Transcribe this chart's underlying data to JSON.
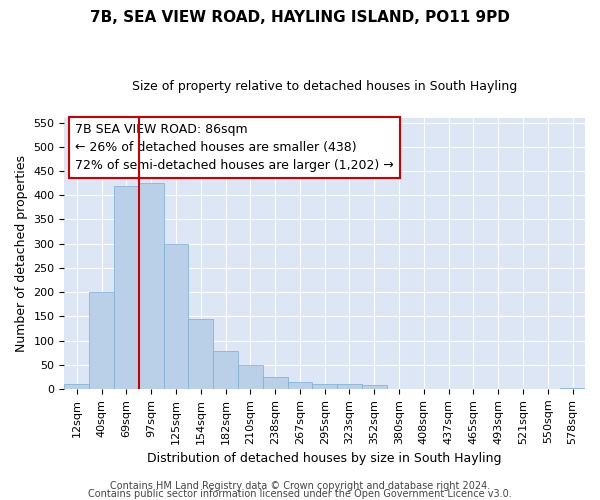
{
  "title": "7B, SEA VIEW ROAD, HAYLING ISLAND, PO11 9PD",
  "subtitle": "Size of property relative to detached houses in South Hayling",
  "xlabel": "Distribution of detached houses by size in South Hayling",
  "ylabel": "Number of detached properties",
  "footnote1": "Contains HM Land Registry data © Crown copyright and database right 2024.",
  "footnote2": "Contains public sector information licensed under the Open Government Licence v3.0.",
  "annotation_title": "7B SEA VIEW ROAD: 86sqm",
  "annotation_line1": "← 26% of detached houses are smaller (438)",
  "annotation_line2": "72% of semi-detached houses are larger (1,202) →",
  "bar_color": "#bad0e8",
  "bar_edge_color": "#7aadd4",
  "vline_color": "#cc0000",
  "categories": [
    "12sqm",
    "40sqm",
    "69sqm",
    "97sqm",
    "125sqm",
    "154sqm",
    "182sqm",
    "210sqm",
    "238sqm",
    "267sqm",
    "295sqm",
    "323sqm",
    "352sqm",
    "380sqm",
    "408sqm",
    "437sqm",
    "465sqm",
    "493sqm",
    "521sqm",
    "550sqm",
    "578sqm"
  ],
  "values": [
    10,
    200,
    420,
    425,
    300,
    145,
    78,
    50,
    25,
    15,
    10,
    10,
    8,
    0,
    0,
    0,
    0,
    0,
    0,
    0,
    2
  ],
  "ylim": [
    0,
    560
  ],
  "yticks": [
    0,
    50,
    100,
    150,
    200,
    250,
    300,
    350,
    400,
    450,
    500,
    550
  ],
  "bg_color": "#dce6f5",
  "annotation_box_facecolor": "white",
  "annotation_box_edgecolor": "#cc0000",
  "title_fontsize": 11,
  "subtitle_fontsize": 9,
  "ylabel_fontsize": 9,
  "xlabel_fontsize": 9,
  "tick_fontsize": 8,
  "annot_fontsize": 9,
  "footnote_fontsize": 7
}
